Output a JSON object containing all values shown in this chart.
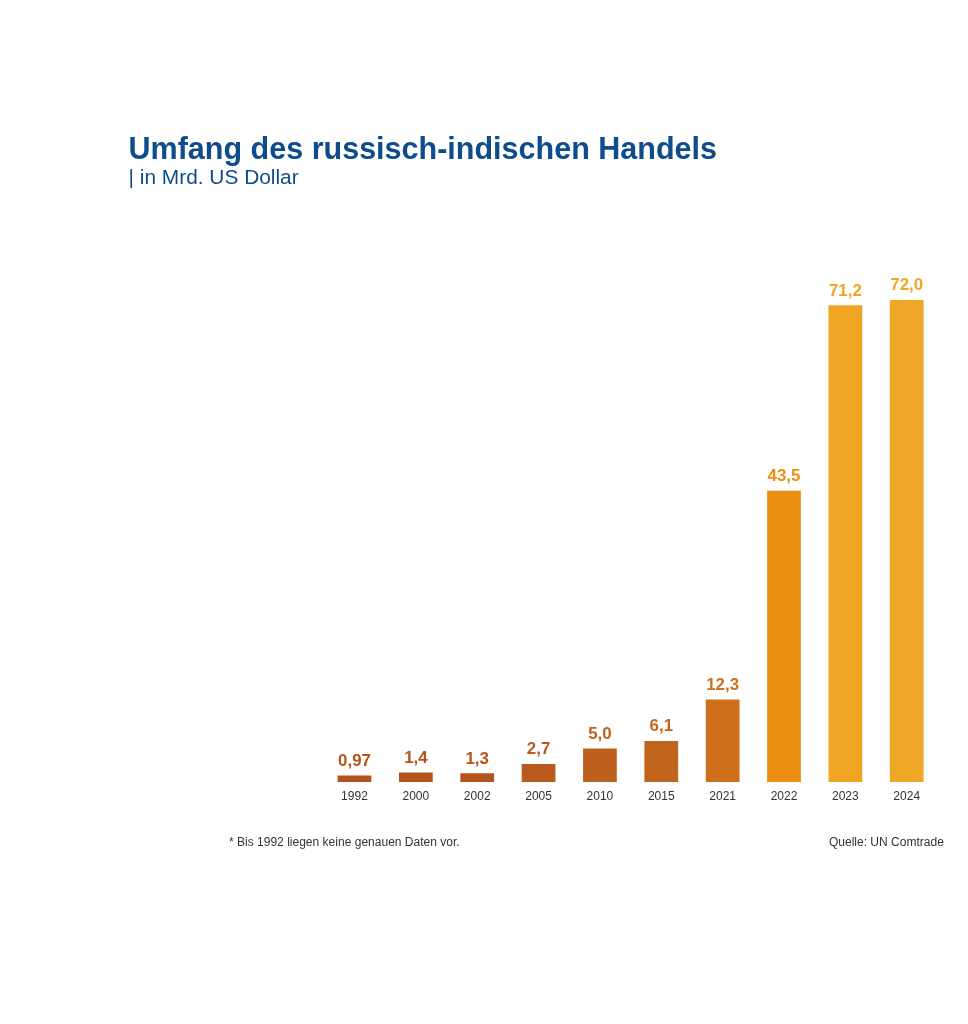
{
  "chart_data": {
    "type": "bar",
    "title": "Umfang des russisch-indischen Handels",
    "subtitle": "| in Mrd. US Dollar",
    "categories": [
      "1992",
      "2000",
      "2002",
      "2005",
      "2010",
      "2015",
      "2021",
      "2022",
      "2023",
      "2024"
    ],
    "values": [
      0.97,
      1.4,
      1.3,
      2.7,
      5.0,
      6.1,
      12.3,
      43.5,
      71.2,
      72.0
    ],
    "value_labels": [
      "0,97",
      "1,4",
      "1,3",
      "2,7",
      "5,0",
      "6,1",
      "12,3",
      "43,5",
      "71,2",
      "72,0"
    ],
    "colors": [
      "#b4541c",
      "#b4541c",
      "#b4541c",
      "#b85a1c",
      "#bc601c",
      "#c2651c",
      "#cf6f1a",
      "#ec8e12",
      "#f0a424",
      "#f0a626"
    ],
    "tick_labels": "x",
    "grid": false,
    "annotations": [
      "* Bis 1992 liegen keine genauen Daten vor.",
      "Quelle: UN Comtrade"
    ]
  }
}
